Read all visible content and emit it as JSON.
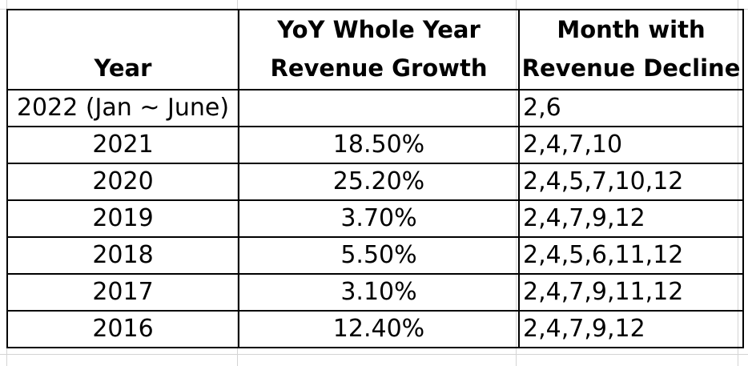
{
  "table": {
    "headers": {
      "year": "Year",
      "growth_line1": "YoY Whole Year",
      "growth_line2": "Revenue Growth",
      "months_line1": "Month with",
      "months_line2": "Revenue Decline"
    },
    "rows": [
      {
        "year": "2022 (Jan ~ June)",
        "growth": "",
        "months": "2,6"
      },
      {
        "year": "2021",
        "growth": "18.50%",
        "months": "2,4,7,10"
      },
      {
        "year": "2020",
        "growth": "25.20%",
        "months": "2,4,5,7,10,12"
      },
      {
        "year": "2019",
        "growth": "3.70%",
        "months": "2,4,7,9,12"
      },
      {
        "year": "2018",
        "growth": "5.50%",
        "months": "2,4,5,6,11,12"
      },
      {
        "year": "2017",
        "growth": "3.10%",
        "months": "2,4,7,9,11,12"
      },
      {
        "year": "2016",
        "growth": "12.40%",
        "months": "2,4,7,9,12"
      }
    ]
  }
}
